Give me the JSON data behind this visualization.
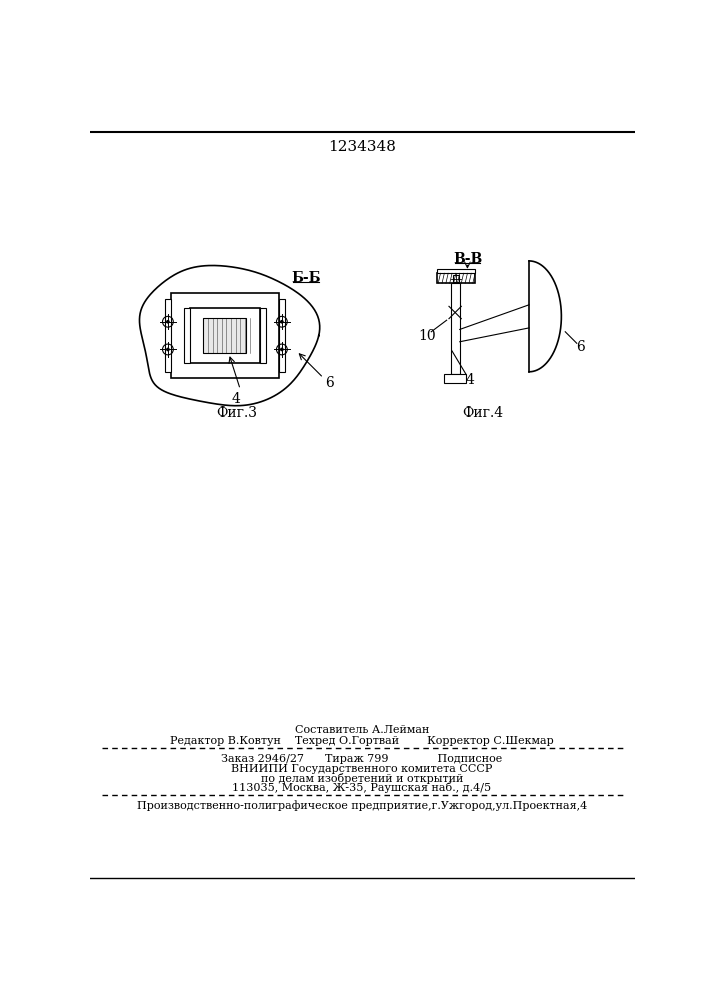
{
  "patent_number": "1234348",
  "fig3_label": "Фиг.3",
  "fig4_label": "Фиг.4",
  "section_label_fig3": "Б-Б",
  "section_label_fig4": "В-В",
  "label_4": "4",
  "label_6": "6",
  "label_10": "10",
  "bg_color": "#ffffff",
  "line_color": "#000000",
  "editor_line": "Редактор В.Ковтун    Техред О.Гортвай        Корректор С.Шекмар",
  "sestavitel_line": "Составитель А.Лейман",
  "order_line": "Заказ 2946/27      Тираж 799              Подписное",
  "institute_line1": "ВНИИПИ Государственного комитета СССР",
  "institute_line2": "по делам изобретений и открытий",
  "institute_line3": "113035, Москва, Ж-35, Раушская наб., д.4/5",
  "factory_line": "Производственно-полиграфическое предприятие,г.Ужгород,ул.Проектная,4"
}
